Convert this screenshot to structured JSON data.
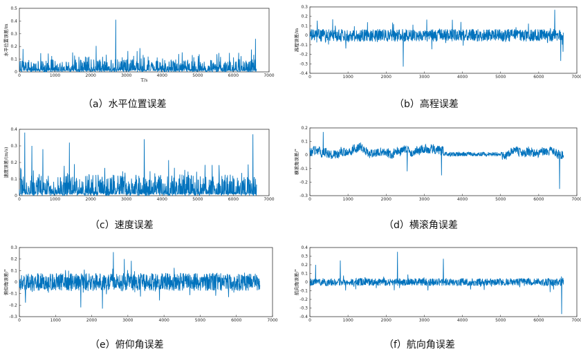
{
  "chart_data": [
    {
      "type": "line",
      "caption": "（a）水平位置误差",
      "ylabel": "水平位置误差/m",
      "xlabel": "T/s",
      "xlim": [
        0,
        7000
      ],
      "ylim": [
        0,
        0.5
      ],
      "xticks": [
        0,
        1000,
        2000,
        3000,
        4000,
        5000,
        6000,
        7000
      ],
      "yticks": [
        0,
        0.1,
        0.2,
        0.3,
        0.4,
        0.5
      ],
      "color": "#0072BD",
      "profile": "spiky-positive",
      "baseline": 0.03,
      "spread": 0.03,
      "x_end": 6650,
      "peaks": [
        [
          100,
          0.18
        ],
        [
          2700,
          0.41
        ],
        [
          6150,
          0.15
        ],
        [
          6620,
          0.26
        ]
      ]
    },
    {
      "type": "line",
      "caption": "（b）高程误差",
      "ylabel": "高程误差/m",
      "xlabel": "",
      "xlim": [
        0,
        7000
      ],
      "ylim": [
        -0.4,
        0.3
      ],
      "xticks": [
        0,
        1000,
        2000,
        3000,
        4000,
        5000,
        6000,
        7000
      ],
      "yticks": [
        -0.4,
        -0.3,
        -0.2,
        -0.1,
        0,
        0.1,
        0.2,
        0.3
      ],
      "color": "#0072BD",
      "profile": "noise",
      "baseline": 0.0,
      "spread": 0.06,
      "x_end": 6650,
      "peaks": [
        [
          2450,
          -0.33
        ],
        [
          6420,
          0.27
        ],
        [
          6580,
          -0.27
        ],
        [
          600,
          0.17
        ]
      ]
    },
    {
      "type": "line",
      "caption": "（c）速度误差",
      "ylabel": "速度误差/(m/s)",
      "xlabel": "",
      "xlim": [
        0,
        7000
      ],
      "ylim": [
        0,
        0.4
      ],
      "xticks": [
        0,
        1000,
        2000,
        3000,
        4000,
        5000,
        6000,
        7000
      ],
      "yticks": [
        0,
        0.1,
        0.2,
        0.3,
        0.4
      ],
      "color": "#0072BD",
      "profile": "spiky-positive",
      "baseline": 0.03,
      "spread": 0.04,
      "x_end": 6650,
      "peaks": [
        [
          150,
          0.38
        ],
        [
          350,
          0.3
        ],
        [
          1400,
          0.32
        ],
        [
          3500,
          0.34
        ],
        [
          6550,
          0.37
        ],
        [
          660,
          0.28
        ]
      ]
    },
    {
      "type": "line",
      "caption": "（d）横滚角误差",
      "ylabel": "横滚角误差/°",
      "xlabel": "",
      "xlim": [
        0,
        7000
      ],
      "ylim": [
        -0.3,
        0.2
      ],
      "xticks": [
        0,
        1000,
        2000,
        3000,
        4000,
        5000,
        6000,
        7000
      ],
      "yticks": [
        -0.3,
        -0.2,
        -0.1,
        0,
        0.1,
        0.2
      ],
      "color": "#0072BD",
      "profile": "drift",
      "baseline": 0.02,
      "spread": 0.04,
      "x_end": 6650,
      "peaks": [
        [
          350,
          0.17
        ],
        [
          3450,
          -0.15
        ],
        [
          6550,
          -0.25
        ],
        [
          2550,
          -0.12
        ]
      ]
    },
    {
      "type": "line",
      "caption": "（e）俯仰角误差",
      "ylabel": "俯仰角误差/°",
      "xlabel": "",
      "xlim": [
        0,
        7000
      ],
      "ylim": [
        -0.3,
        0.3
      ],
      "xticks": [
        0,
        1000,
        2000,
        3000,
        4000,
        5000,
        6000,
        7000
      ],
      "yticks": [
        -0.3,
        -0.2,
        -0.1,
        0,
        0.1,
        0.2,
        0.3
      ],
      "color": "#0072BD",
      "profile": "noise",
      "baseline": 0.0,
      "spread": 0.07,
      "x_end": 6650,
      "peaks": [
        [
          2600,
          0.26
        ],
        [
          2300,
          -0.23
        ],
        [
          1700,
          -0.22
        ],
        [
          2900,
          0.2
        ]
      ]
    },
    {
      "type": "line",
      "caption": "（f）航向角误差",
      "ylabel": "航向角误差/°",
      "xlabel": "",
      "xlim": [
        0,
        7000
      ],
      "ylim": [
        -0.4,
        0.4
      ],
      "xticks": [
        0,
        1000,
        2000,
        3000,
        4000,
        5000,
        6000,
        7000
      ],
      "yticks": [
        -0.4,
        -0.3,
        -0.2,
        -0.1,
        0,
        0.1,
        0.2,
        0.3,
        0.4
      ],
      "color": "#0072BD",
      "profile": "noise",
      "baseline": 0.0,
      "spread": 0.04,
      "x_end": 6650,
      "peaks": [
        [
          2300,
          0.35
        ],
        [
          3500,
          0.27
        ],
        [
          800,
          0.25
        ],
        [
          6600,
          -0.37
        ],
        [
          150,
          0.2
        ]
      ]
    }
  ]
}
